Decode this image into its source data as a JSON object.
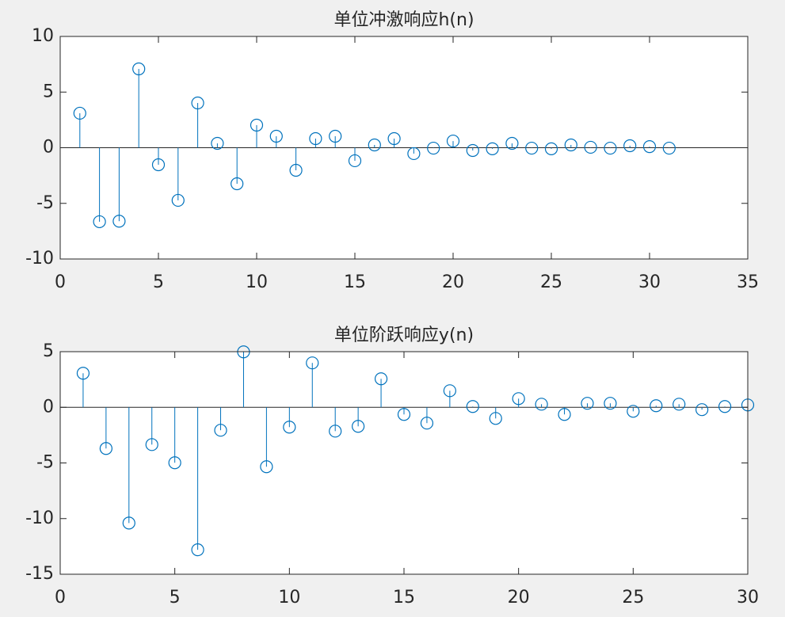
{
  "chart_data": [
    {
      "type": "stem",
      "title": "单位冲激响应h(n)",
      "color": "#0072bd",
      "x": [
        1,
        2,
        3,
        4,
        5,
        6,
        7,
        8,
        9,
        10,
        11,
        12,
        13,
        14,
        15,
        16,
        17,
        18,
        19,
        20,
        21,
        22,
        23,
        24,
        25,
        26,
        27,
        28,
        29,
        30,
        31
      ],
      "values": [
        3.1,
        -6.65,
        -6.6,
        7.08,
        -1.53,
        -4.73,
        4.02,
        0.39,
        -3.24,
        2.03,
        1.03,
        -2.03,
        0.82,
        1.03,
        -1.17,
        0.25,
        0.82,
        -0.53,
        -0.04,
        0.6,
        -0.25,
        -0.1,
        0.39,
        -0.04,
        -0.1,
        0.25,
        0.04,
        -0.04,
        0.18,
        0.1,
        -0.04
      ],
      "xlim": [
        0,
        35
      ],
      "xticks": [
        0,
        5,
        10,
        15,
        20,
        25,
        30,
        35
      ],
      "ylim": [
        -10,
        10
      ],
      "yticks": [
        -10,
        -5,
        0,
        5,
        10
      ]
    },
    {
      "type": "stem",
      "title": "单位阶跃响应y(n)",
      "color": "#0072bd",
      "x": [
        1,
        2,
        3,
        4,
        5,
        6,
        7,
        8,
        9,
        10,
        11,
        12,
        13,
        14,
        15,
        16,
        17,
        18,
        19,
        20,
        21,
        22,
        23,
        24,
        25,
        26,
        27,
        28,
        29,
        30
      ],
      "values": [
        3.06,
        -3.7,
        -10.4,
        -3.35,
        -4.98,
        -12.8,
        -2.06,
        4.98,
        -5.34,
        -1.78,
        3.99,
        -2.14,
        -1.71,
        2.56,
        -0.64,
        -1.42,
        1.49,
        0.07,
        -1.0,
        0.78,
        0.28,
        -0.64,
        0.36,
        0.36,
        -0.36,
        0.14,
        0.28,
        -0.21,
        0.07,
        0.21
      ],
      "xlim": [
        0,
        30
      ],
      "xticks": [
        0,
        5,
        10,
        15,
        20,
        25,
        30
      ],
      "ylim": [
        -15,
        5
      ],
      "yticks": [
        -15,
        -10,
        -5,
        0,
        5
      ]
    }
  ]
}
